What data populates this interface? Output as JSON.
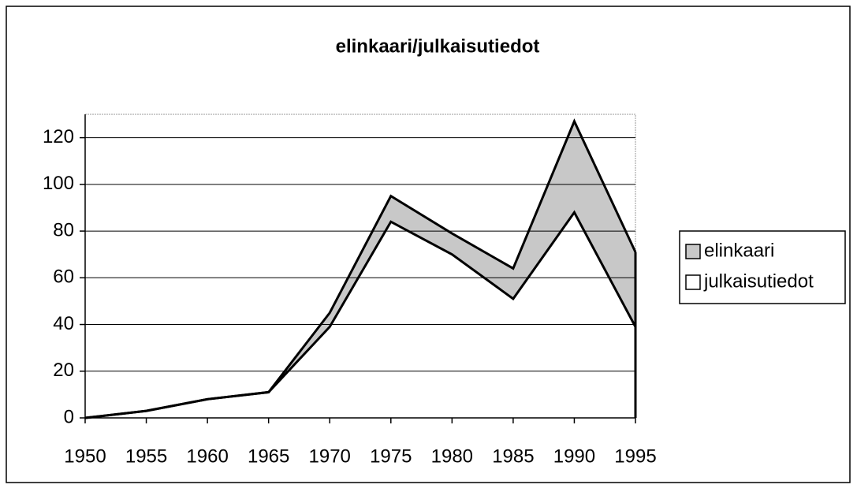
{
  "chart_data": {
    "type": "stacked_area",
    "title": "elinkaari/julkaisutiedot",
    "categories": [
      "1950",
      "1955",
      "1960",
      "1965",
      "1970",
      "1975",
      "1980",
      "1985",
      "1990",
      "1995"
    ],
    "series": [
      {
        "name": "julkaisutiedot",
        "color": "#ffffff",
        "values": [
          0,
          3,
          8,
          11,
          39,
          84,
          70,
          51,
          88,
          39
        ]
      },
      {
        "name": "elinkaari",
        "color": "#c8c8c8",
        "values": [
          0,
          0,
          0,
          0,
          6,
          11,
          9,
          13,
          39,
          32
        ]
      }
    ],
    "ylim": [
      0,
      130
    ],
    "yticks": [
      0,
      20,
      40,
      60,
      80,
      100,
      120
    ],
    "grid": true,
    "legend": "right"
  }
}
